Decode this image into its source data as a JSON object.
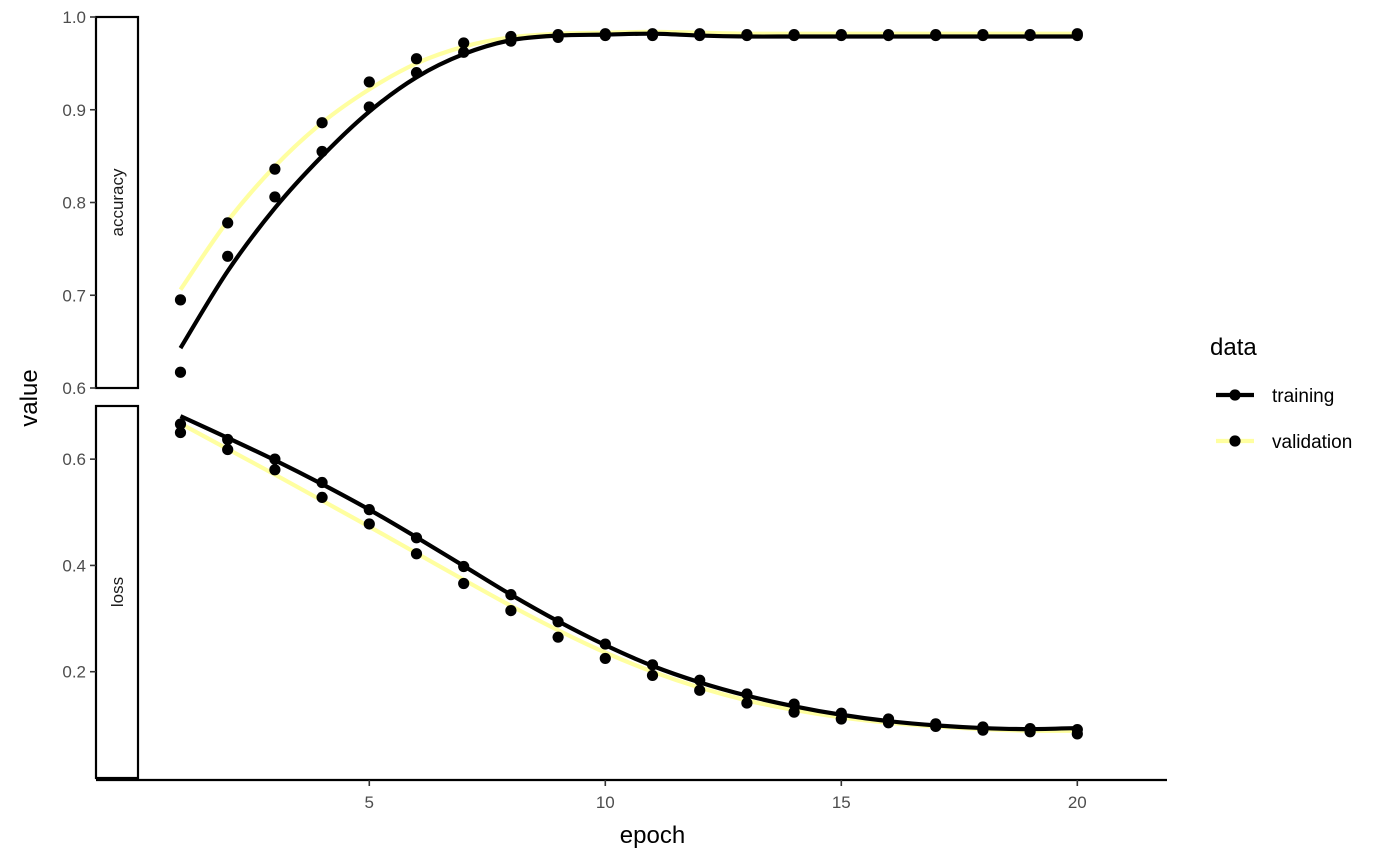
{
  "chart_data": {
    "type": "line",
    "subtype": "faceted scatter with smoothed lines",
    "xlabel": "epoch",
    "ylabel": "value",
    "x_ticks": [
      5,
      10,
      15,
      20
    ],
    "xlim": [
      0.1,
      21.9
    ],
    "legend": {
      "title": "data",
      "position": "right",
      "entries": [
        {
          "label": "training",
          "color": "#000000"
        },
        {
          "label": "validation",
          "color": "#FFFFA0"
        }
      ]
    },
    "facets": [
      {
        "label": "accuracy",
        "ylim": [
          0.6,
          1.0
        ],
        "y_ticks": [
          0.6,
          0.7,
          0.8,
          0.9,
          1.0
        ],
        "y_tick_labels": [
          "0.6",
          "0.7",
          "0.8",
          "0.9",
          "1.0"
        ],
        "series": [
          {
            "name": "training",
            "x": [
              1,
              2,
              3,
              4,
              5,
              6,
              7,
              8,
              9,
              10,
              11,
              12,
              13,
              14,
              15,
              16,
              17,
              18,
              19,
              20
            ],
            "points": [
              0.617,
              0.742,
              0.806,
              0.855,
              0.903,
              0.94,
              0.962,
              0.974,
              0.978,
              0.98,
              0.98,
              0.98,
              0.98,
              0.98,
              0.98,
              0.98,
              0.98,
              0.98,
              0.98,
              0.98
            ],
            "smooth": [
              0.643,
              0.726,
              0.794,
              0.85,
              0.898,
              0.935,
              0.96,
              0.975,
              0.98,
              0.981,
              0.982,
              0.98,
              0.979,
              0.979,
              0.979,
              0.979,
              0.979,
              0.979,
              0.979,
              0.979
            ]
          },
          {
            "name": "validation",
            "x": [
              1,
              2,
              3,
              4,
              5,
              6,
              7,
              8,
              9,
              10,
              11,
              12,
              13,
              14,
              15,
              16,
              17,
              18,
              19,
              20
            ],
            "points": [
              0.695,
              0.778,
              0.836,
              0.886,
              0.93,
              0.955,
              0.972,
              0.979,
              0.981,
              0.982,
              0.982,
              0.982,
              0.981,
              0.981,
              0.981,
              0.981,
              0.981,
              0.981,
              0.981,
              0.982
            ],
            "smooth": [
              0.706,
              0.78,
              0.839,
              0.886,
              0.922,
              0.95,
              0.968,
              0.978,
              0.982,
              0.983,
              0.984,
              0.983,
              0.982,
              0.982,
              0.982,
              0.982,
              0.982,
              0.982,
              0.982,
              0.982
            ]
          }
        ]
      },
      {
        "label": "loss",
        "ylim": [
          0.0,
          0.7
        ],
        "y_ticks": [
          0.2,
          0.4,
          0.6
        ],
        "y_tick_labels": [
          "0.2",
          "0.4",
          "0.6"
        ],
        "series": [
          {
            "name": "training",
            "x": [
              1,
              2,
              3,
              4,
              5,
              6,
              7,
              8,
              9,
              10,
              11,
              12,
              13,
              14,
              15,
              16,
              17,
              18,
              19,
              20
            ],
            "points": [
              0.666,
              0.637,
              0.6,
              0.556,
              0.505,
              0.452,
              0.398,
              0.345,
              0.294,
              0.252,
              0.213,
              0.184,
              0.158,
              0.139,
              0.122,
              0.111,
              0.102,
              0.096,
              0.093,
              0.091
            ],
            "smooth": [
              0.681,
              0.64,
              0.598,
              0.553,
              0.505,
              0.453,
              0.399,
              0.345,
              0.295,
              0.25,
              0.211,
              0.18,
              0.155,
              0.135,
              0.119,
              0.107,
              0.099,
              0.094,
              0.092,
              0.094
            ]
          },
          {
            "name": "validation",
            "x": [
              1,
              2,
              3,
              4,
              5,
              6,
              7,
              8,
              9,
              10,
              11,
              12,
              13,
              14,
              15,
              16,
              17,
              18,
              19,
              20
            ],
            "points": [
              0.65,
              0.618,
              0.58,
              0.528,
              0.478,
              0.422,
              0.366,
              0.315,
              0.265,
              0.225,
              0.193,
              0.165,
              0.141,
              0.124,
              0.111,
              0.104,
              0.097,
              0.09,
              0.087,
              0.083
            ],
            "smooth": [
              0.667,
              0.619,
              0.571,
              0.522,
              0.473,
              0.423,
              0.373,
              0.324,
              0.278,
              0.236,
              0.2,
              0.17,
              0.146,
              0.128,
              0.114,
              0.104,
              0.097,
              0.092,
              0.089,
              0.089
            ]
          }
        ]
      }
    ]
  }
}
